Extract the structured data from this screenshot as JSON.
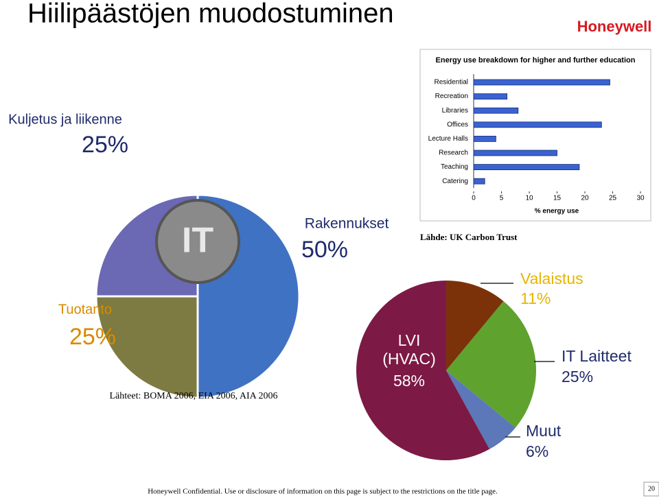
{
  "header": {
    "title": "Hiilipäästöjen muodostuminen",
    "logo": "Honeywell"
  },
  "chart_data": [
    {
      "type": "pie",
      "center_label": "IT",
      "categories": [
        "Kuljetus ja liikenne",
        "Rakennukset",
        "Tuotanto"
      ],
      "values": [
        25,
        50,
        25
      ],
      "value_labels": [
        "25%",
        "50%",
        "25%"
      ],
      "colors": [
        "#6b68b4",
        "#3f72c2",
        "#7d7b42"
      ],
      "source": "Lähteet: BOMA 2006, EIA 2006, AIA 2006"
    },
    {
      "type": "bar",
      "orientation": "horizontal",
      "title": "Energy use breakdown for higher and further education",
      "categories": [
        "Residential",
        "Recreation",
        "Libraries",
        "Offices",
        "Lecture Halls",
        "Research",
        "Teaching",
        "Catering"
      ],
      "values": [
        24.5,
        6,
        8,
        23,
        4,
        15,
        19,
        2
      ],
      "color": "#3a63d0",
      "xlim": [
        0,
        30
      ],
      "xticks": [
        0,
        5,
        10,
        15,
        20,
        25,
        30
      ],
      "xlabel": "% energy use",
      "source": "Lähde: UK Carbon Trust"
    },
    {
      "type": "pie",
      "categories": [
        "Valaistus",
        "IT Laitteet",
        "Muut",
        "LVI (HVAC)"
      ],
      "values": [
        11,
        25,
        6,
        58
      ],
      "value_labels": [
        "11%",
        "25%",
        "6%",
        "58%"
      ],
      "colors": [
        "#7c3209",
        "#5fa22e",
        "#5c78b8",
        "#7c1a45"
      ]
    }
  ],
  "footer": {
    "text": "Honeywell Confidential. Use or disclosure of information on this page is subject to the restrictions on the title page.",
    "page_number": "20"
  }
}
